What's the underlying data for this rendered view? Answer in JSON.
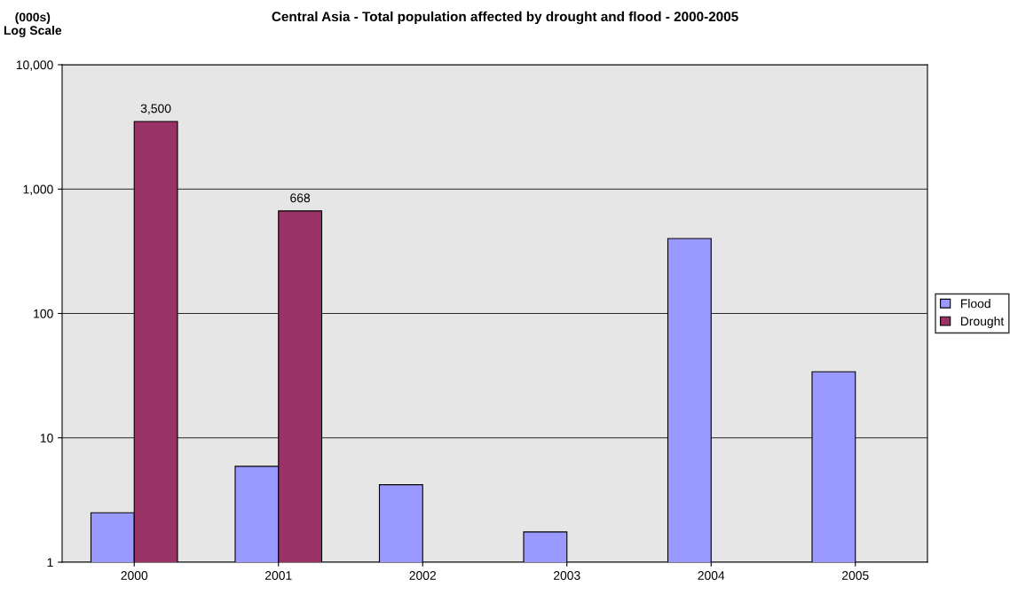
{
  "chart_data": {
    "type": "bar",
    "title": "Central Asia - Total population affected by drought and flood - 2000-2005",
    "ylabel": "(000s)\nLog Scale",
    "categories": [
      "2000",
      "2001",
      "2002",
      "2003",
      "2004",
      "2005"
    ],
    "series": [
      {
        "name": "Flood",
        "color": "#9999ff",
        "values": [
          2.5,
          5.9,
          4.2,
          1.75,
          400,
          34
        ]
      },
      {
        "name": "Drought",
        "color": "#993366",
        "values": [
          3500,
          668,
          null,
          null,
          null,
          null
        ],
        "value_labels": [
          "3,500",
          "668",
          null,
          null,
          null,
          null
        ]
      }
    ],
    "log": "y",
    "ylim": [
      1,
      10000
    ],
    "yticks": [
      1,
      10,
      {
        "value": 100,
        "label": "100"
      },
      {
        "value": 1000,
        "label": "1,000"
      },
      {
        "value": 10000,
        "label": "10,000"
      }
    ],
    "grid": "y",
    "legend": "right"
  }
}
